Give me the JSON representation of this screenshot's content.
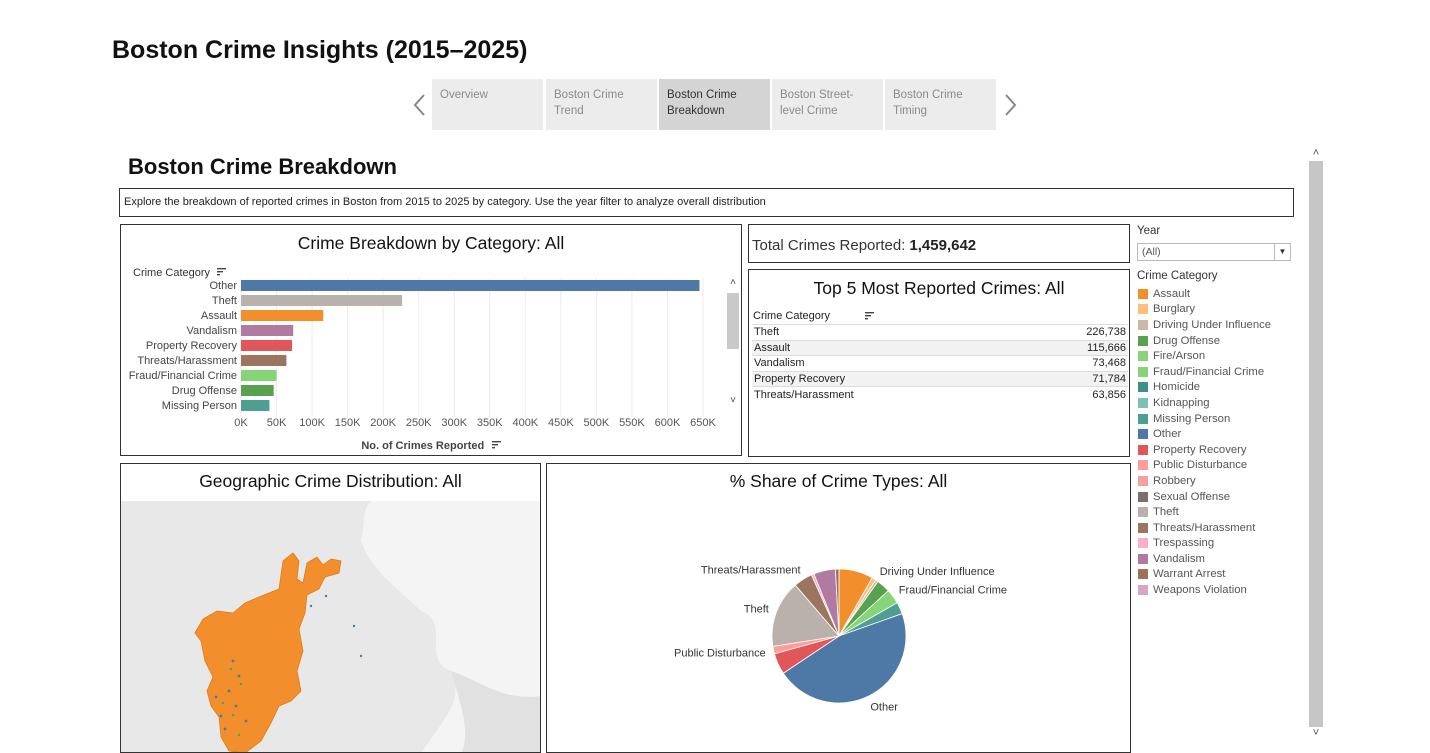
{
  "app": {
    "title": "Boston Crime Insights (2015–2025)"
  },
  "story_nav": {
    "tabs": [
      {
        "line1": "Overview",
        "line2": ""
      },
      {
        "line1": "Boston Crime",
        "line2": "Trend"
      },
      {
        "line1": "Boston Crime",
        "line2": "Breakdown"
      },
      {
        "line1": "Boston Street-",
        "line2": "level Crime"
      },
      {
        "line1": "Boston Crime",
        "line2": "Timing"
      }
    ],
    "active_index": 2,
    "prev_icon": "chevron-left-icon",
    "next_icon": "chevron-right-icon"
  },
  "dashboard": {
    "title": "Boston Crime Breakdown",
    "description": "Explore the breakdown of reported crimes in Boston from 2015 to 2025 by category. Use the year filter to analyze overall distribution"
  },
  "bar_panel": {
    "title": "Crime Breakdown by Category:  All",
    "row_header": "Crime Category",
    "x_label": "No. of Crimes Reported"
  },
  "total_panel": {
    "label": "Total Crimes Reported:",
    "value": "1,459,642"
  },
  "top5_panel": {
    "title": "Top 5 Most Reported Crimes:  All",
    "header": "Crime Category",
    "rows": [
      {
        "category": "Theft",
        "count": "226,738"
      },
      {
        "category": "Assault",
        "count": "115,666"
      },
      {
        "category": "Vandalism",
        "count": "73,468"
      },
      {
        "category": "Property Recovery",
        "count": "71,784"
      },
      {
        "category": "Threats/Harassment",
        "count": "63,856"
      }
    ]
  },
  "filters": {
    "year_label": "Year",
    "year_value": "(All)",
    "category_label": "Crime Category",
    "legend": [
      {
        "name": "Assault",
        "color": "#f28e2b"
      },
      {
        "name": "Burglary",
        "color": "#ffbe7d"
      },
      {
        "name": "Driving Under Influence",
        "color": "#c9b8a6"
      },
      {
        "name": "Drug Offense",
        "color": "#59a14f"
      },
      {
        "name": "Fire/Arson",
        "color": "#8cd17d"
      },
      {
        "name": "Fraud/Financial Crime",
        "color": "#86d478"
      },
      {
        "name": "Homicide",
        "color": "#3f8f88"
      },
      {
        "name": "Kidnapping",
        "color": "#7fbfb5"
      },
      {
        "name": "Missing Person",
        "color": "#4e9f92"
      },
      {
        "name": "Other",
        "color": "#4e79a7"
      },
      {
        "name": "Property Recovery",
        "color": "#e15759"
      },
      {
        "name": "Public Disturbance",
        "color": "#ff9d9a"
      },
      {
        "name": "Robbery",
        "color": "#f1a1a0"
      },
      {
        "name": "Sexual Offense",
        "color": "#79706e"
      },
      {
        "name": "Theft",
        "color": "#bab0ac"
      },
      {
        "name": "Threats/Harassment",
        "color": "#9c755f"
      },
      {
        "name": "Trespassing",
        "color": "#fbaec5"
      },
      {
        "name": "Vandalism",
        "color": "#b07aa1"
      },
      {
        "name": "Warrant Arrest",
        "color": "#a0715a"
      },
      {
        "name": "Weapons Violation",
        "color": "#d4a6c8"
      }
    ]
  },
  "map_panel": {
    "title": "Geographic Crime Distribution:  All"
  },
  "pie_panel": {
    "title": "% Share of Crime Types:  All"
  },
  "chart_data": [
    {
      "type": "bar",
      "orientation": "horizontal",
      "title": "Crime Breakdown by Category:  All",
      "ylabel": "Crime Category",
      "xlabel": "No. of Crimes Reported",
      "categories": [
        "Other",
        "Theft",
        "Assault",
        "Vandalism",
        "Property Recovery",
        "Threats/Harassment",
        "Fraud/Financial Crime",
        "Drug Offense",
        "Missing Person"
      ],
      "values": [
        645000,
        226738,
        115666,
        73468,
        71784,
        63856,
        50000,
        46000,
        40000
      ],
      "colors": [
        "#4e79a7",
        "#bab0ac",
        "#f28e2b",
        "#b07aa1",
        "#e15759",
        "#9c755f",
        "#86d478",
        "#59a14f",
        "#4e9f92"
      ],
      "xlim": [
        0,
        650000
      ],
      "xticks": [
        "0K",
        "50K",
        "100K",
        "150K",
        "200K",
        "250K",
        "300K",
        "350K",
        "400K",
        "450K",
        "500K",
        "550K",
        "600K",
        "650K"
      ],
      "grid": true
    },
    {
      "type": "pie",
      "title": "% Share of Crime Types:  All",
      "slices": [
        {
          "name": "Assault",
          "value": 115666,
          "color": "#f28e2b"
        },
        {
          "name": "Burglary",
          "value": 14000,
          "color": "#ffbe7d"
        },
        {
          "name": "Driving Under Influence",
          "value": 9000,
          "color": "#c9b8a6"
        },
        {
          "name": "Drug Offense",
          "value": 46000,
          "color": "#59a14f"
        },
        {
          "name": "Fraud/Financial Crime",
          "value": 50000,
          "color": "#86d478"
        },
        {
          "name": "Missing Person",
          "value": 40000,
          "color": "#4e9f92"
        },
        {
          "name": "Other",
          "value": 645000,
          "color": "#4e79a7"
        },
        {
          "name": "Property Recovery",
          "value": 71784,
          "color": "#e15759"
        },
        {
          "name": "Public Disturbance",
          "value": 25000,
          "color": "#ff9d9a"
        },
        {
          "name": "Theft",
          "value": 226738,
          "color": "#bab0ac"
        },
        {
          "name": "Threats/Harassment",
          "value": 63856,
          "color": "#9c755f"
        },
        {
          "name": "Trespassing",
          "value": 9000,
          "color": "#fbaec5"
        },
        {
          "name": "Vandalism",
          "value": 73468,
          "color": "#b07aa1"
        },
        {
          "name": "Warrant Arrest",
          "value": 12000,
          "color": "#a0715a"
        }
      ],
      "labels": [
        "Threats/Harassment",
        "Driving Under Influence",
        "Fraud/Financial Crime",
        "Theft",
        "Public Disturbance",
        "Other"
      ]
    }
  ]
}
